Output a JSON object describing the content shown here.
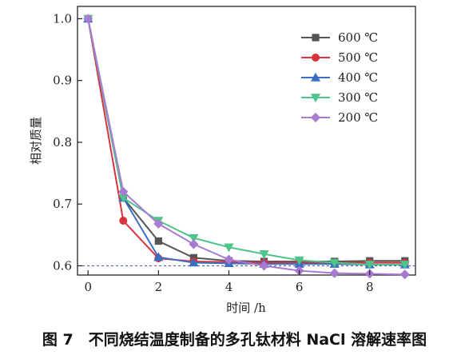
{
  "caption": "图 7　不同烧结温度制备的多孔钛材料 NaCl 溶解速率图",
  "chart_data": {
    "type": "line",
    "xlabel": "时间 /h",
    "ylabel": "相对质量",
    "xlim": [
      -0.3,
      9.3
    ],
    "ylim": [
      0.585,
      1.02
    ],
    "xticks": [
      0,
      2,
      4,
      6,
      8
    ],
    "yticks": [
      0.6,
      0.7,
      0.8,
      0.9,
      1.0
    ],
    "xtick_labels": [
      "0",
      "2",
      "4",
      "6",
      "8"
    ],
    "ytick_labels": [
      "0.6",
      "0.7",
      "0.8",
      "0.9",
      "1.0"
    ],
    "reference_line": {
      "y": 0.6,
      "style": "dashed",
      "color": "#4a5fb0"
    },
    "legend_position": "top-right",
    "x": [
      0,
      1,
      2,
      3,
      4,
      5,
      6,
      7,
      8,
      9
    ],
    "series": [
      {
        "name": "600 ℃",
        "color": "#555555",
        "marker": "square",
        "values": [
          1.0,
          0.71,
          0.64,
          0.613,
          0.608,
          0.607,
          0.607,
          0.607,
          0.608,
          0.608
        ]
      },
      {
        "name": "500 ℃",
        "color": "#d9333f",
        "marker": "circle",
        "values": [
          1.0,
          0.673,
          0.612,
          0.607,
          0.606,
          0.605,
          0.605,
          0.605,
          0.605,
          0.605
        ]
      },
      {
        "name": "400 ℃",
        "color": "#3a6fc4",
        "marker": "triangle-up",
        "values": [
          1.0,
          0.71,
          0.614,
          0.605,
          0.604,
          0.603,
          0.603,
          0.603,
          0.602,
          0.602
        ]
      },
      {
        "name": "300 ℃",
        "color": "#4fc48a",
        "marker": "triangle-down",
        "values": [
          1.0,
          0.71,
          0.673,
          0.645,
          0.63,
          0.619,
          0.609,
          0.605,
          0.602,
          0.602
        ]
      },
      {
        "name": "200 ℃",
        "color": "#a77bd1",
        "marker": "diamond",
        "values": [
          1.0,
          0.72,
          0.668,
          0.635,
          0.61,
          0.6,
          0.592,
          0.588,
          0.587,
          0.586
        ]
      }
    ]
  }
}
